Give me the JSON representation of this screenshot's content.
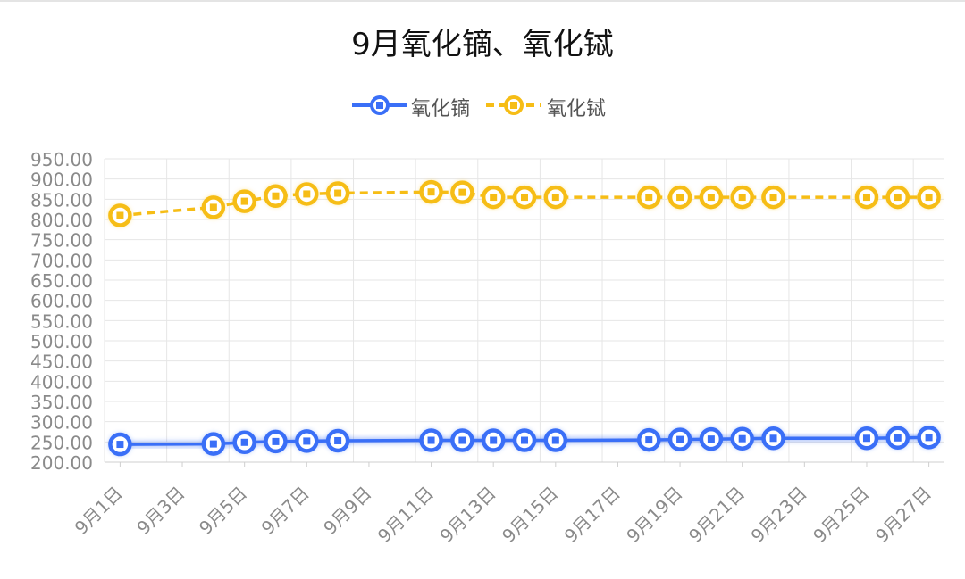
{
  "chart_data": {
    "type": "line",
    "title": "9月氧化镝、氧化铽",
    "xlabel": "",
    "ylabel": "",
    "ylim": [
      200,
      950
    ],
    "yticks": [
      "950.00",
      "900.00",
      "850.00",
      "800.00",
      "750.00",
      "700.00",
      "650.00",
      "600.00",
      "550.00",
      "500.00",
      "450.00",
      "400.00",
      "350.00",
      "300.00",
      "250.00",
      "200.00"
    ],
    "x_tick_labels": [
      "9月1日",
      "9月3日",
      "9月5日",
      "9月7日",
      "9月9日",
      "9月11日",
      "9月13日",
      "9月15日",
      "9月17日",
      "9月19日",
      "9月21日",
      "9月23日",
      "9月25日",
      "9月27日"
    ],
    "legend_position": "top-center",
    "grid": true,
    "series": [
      {
        "name": "氧化镝",
        "color": "#3a6ff7",
        "line_style": "solid",
        "x": [
          1,
          4,
          5,
          6,
          7,
          8,
          11,
          12,
          13,
          14,
          15,
          18,
          19,
          20,
          21,
          22,
          25,
          26,
          27
        ],
        "values": [
          244,
          245,
          249,
          251,
          252,
          253,
          254,
          254,
          254,
          254,
          254,
          255,
          256,
          257,
          258,
          259,
          259,
          260,
          261
        ]
      },
      {
        "name": "氧化铽",
        "color": "#f6bd16",
        "line_style": "dashed",
        "x": [
          1,
          4,
          5,
          6,
          7,
          8,
          11,
          12,
          13,
          14,
          15,
          18,
          19,
          20,
          21,
          22,
          25,
          26,
          27
        ],
        "values": [
          810,
          830,
          845,
          858,
          863,
          865,
          868,
          867,
          855,
          855,
          855,
          855,
          855,
          855,
          855,
          855,
          855,
          855,
          855
        ]
      }
    ]
  }
}
